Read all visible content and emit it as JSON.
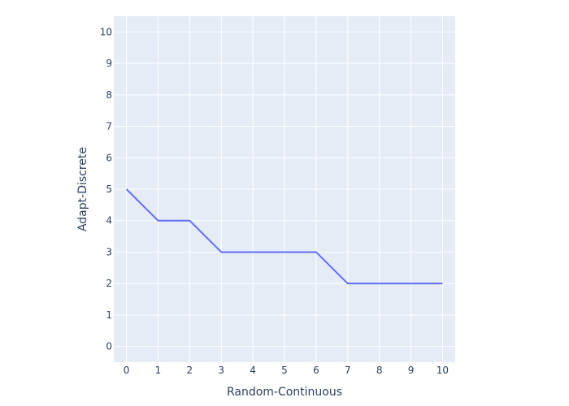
{
  "chart_data": {
    "type": "line",
    "title": "",
    "xlabel": "Random-Continuous",
    "ylabel": "Adapt-Discrete",
    "xlim": [
      -0.4,
      10.4
    ],
    "ylim": [
      -0.5,
      10.5
    ],
    "xticks": [
      0,
      1,
      2,
      3,
      4,
      5,
      6,
      7,
      8,
      9,
      10
    ],
    "yticks": [
      0,
      1,
      2,
      3,
      4,
      5,
      6,
      7,
      8,
      9,
      10
    ],
    "grid": true,
    "legend": "none",
    "series": [
      {
        "name": "trace 0",
        "x": [
          0,
          1,
          2,
          3,
          4,
          5,
          6,
          7,
          8,
          9,
          10
        ],
        "y": [
          5,
          4,
          4,
          3,
          3,
          3,
          3,
          2,
          2,
          2,
          2
        ]
      }
    ],
    "colors": {
      "plot_bg": "#e5ecf6",
      "grid": "#ffffff",
      "line": "#636efa",
      "text": "#2a3f5f"
    }
  }
}
